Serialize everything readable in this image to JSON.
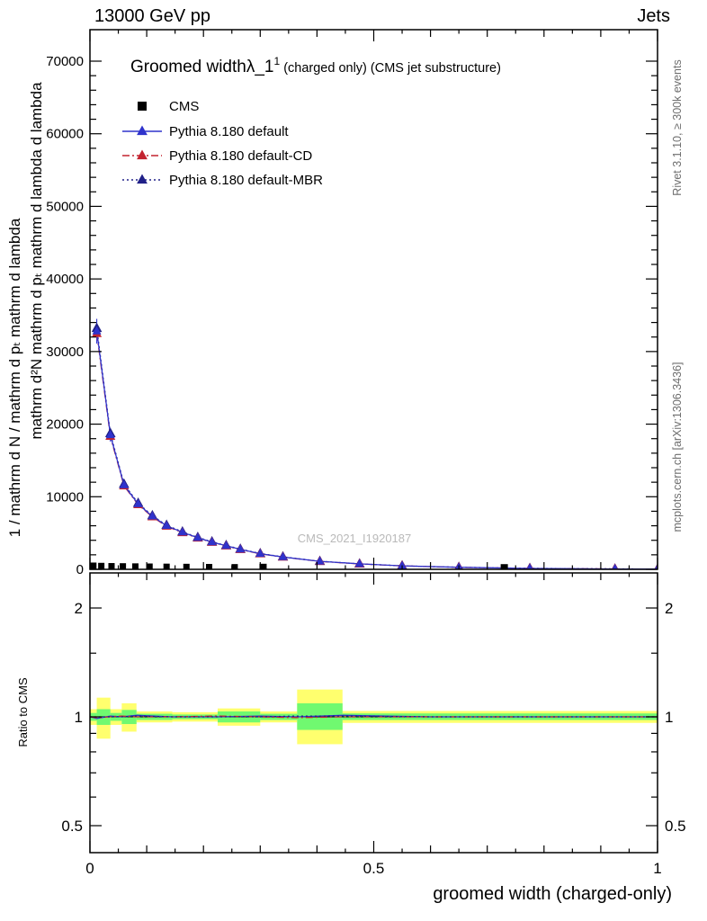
{
  "header": {
    "left": "13000 GeV pp",
    "right": "Jets"
  },
  "side_labels": {
    "rivet": "Rivet 3.1.10, ≥ 300k events",
    "mcplots": "mcplots.cern.ch [arXiv:1306.3436]",
    "watermark": "CMS_2021_I1920187"
  },
  "main_panel": {
    "title_main": "Groomed width",
    "title_symbol": "λ_1",
    "title_sup": "1",
    "title_suffix": " (charged only) (CMS jet substructure)",
    "ylabel_outer": "1 / mathrm d N / mathrm d pₜ mathrm d lambda",
    "ylabel_inner": "mathrm d²N mathrm d pₜ mathrm d lambda d lambda"
  },
  "legend": {
    "entries": [
      {
        "label": "CMS",
        "marker": "square",
        "color": "#000000",
        "dash": "solid"
      },
      {
        "label": "Pythia 8.180 default",
        "marker": "line-triangle",
        "color": "#2f33cc",
        "dash": "solid"
      },
      {
        "label": "Pythia 8.180 default-CD",
        "marker": "line-triangle",
        "color": "#c3232f",
        "dash": "dashdot"
      },
      {
        "label": "Pythia 8.180 default-MBR",
        "marker": "line-triangle",
        "color": "#202088",
        "dash": "dot"
      }
    ]
  },
  "ratio_panel": {
    "ylabel": "Ratio to CMS"
  },
  "xaxis": {
    "label": "groomed width (charged-only)"
  },
  "colors": {
    "blue": "#2f33cc",
    "red": "#c3232f",
    "navy": "#202088",
    "black": "#000000",
    "band_yellow": "#ffff6e",
    "band_green": "#70f970",
    "gray_text": "#6e6e6e",
    "watermark": "#b9b9b9"
  },
  "chart_data": {
    "main": {
      "type": "line",
      "xlim": [
        0,
        1
      ],
      "ylim": [
        0,
        74000
      ],
      "grid": false,
      "legend_position": "top-left",
      "yticks": [
        {
          "v": 0,
          "label": "0"
        },
        {
          "v": 10000,
          "label": "10000"
        },
        {
          "v": 20000,
          "label": "20000"
        },
        {
          "v": 30000,
          "label": "30000"
        },
        {
          "v": 40000,
          "label": "40000"
        },
        {
          "v": 50000,
          "label": "50000"
        },
        {
          "v": 60000,
          "label": "60000"
        },
        {
          "v": 70000,
          "label": "70000"
        }
      ],
      "ytick_minor_step": 2000,
      "xticks": [
        {
          "v": 0,
          "label": "0"
        },
        {
          "v": 0.5,
          "label": "0.5"
        },
        {
          "v": 1,
          "label": "1"
        }
      ],
      "x": [
        0.012,
        0.036,
        0.06,
        0.085,
        0.11,
        0.135,
        0.163,
        0.19,
        0.215,
        0.24,
        0.265,
        0.3,
        0.34,
        0.405,
        0.475,
        0.55,
        0.65,
        0.775,
        0.925,
        1.0
      ],
      "series": [
        {
          "name": "Pythia 8.180 default",
          "color": "#2f33cc",
          "dash": "solid",
          "values": [
            32800,
            18500,
            11600,
            9000,
            7300,
            6000,
            5100,
            4350,
            3750,
            3250,
            2750,
            2150,
            1700,
            1100,
            750,
            480,
            280,
            130,
            55,
            35
          ],
          "errors": [
            1700,
            900,
            520,
            420,
            360,
            300,
            260,
            230,
            200,
            185,
            170,
            150,
            130,
            105,
            85,
            65,
            45,
            30,
            20,
            15
          ]
        },
        {
          "name": "Pythia 8.180 default-CD",
          "color": "#c3232f",
          "dash": "dashdot",
          "values": [
            32470,
            18315,
            11484,
            8910,
            7227,
            5940,
            5049,
            4307,
            3713,
            3218,
            2723,
            2129,
            1683,
            1089,
            743,
            475,
            277,
            129,
            54,
            35
          ]
        },
        {
          "name": "Pythia 8.180 default-MBR",
          "color": "#202088",
          "dash": "dot",
          "values": [
            33194,
            18722,
            11739,
            9108,
            7388,
            6072,
            5161,
            4402,
            3795,
            3289,
            2783,
            2176,
            1720,
            1113,
            759,
            486,
            283,
            132,
            56,
            35
          ]
        }
      ],
      "cms_data": {
        "name": "CMS",
        "marker": "square",
        "color": "#000000",
        "x": [
          0.006,
          0.02,
          0.038,
          0.058,
          0.08,
          0.105,
          0.135,
          0.17,
          0.21,
          0.255,
          0.305,
          0.73
        ],
        "y": [
          500,
          460,
          430,
          410,
          390,
          370,
          350,
          330,
          310,
          290,
          270,
          220
        ],
        "size": [
          7,
          7,
          7,
          7,
          7,
          7,
          7,
          7,
          7,
          7,
          8,
          8
        ]
      }
    },
    "ratio": {
      "type": "ratio",
      "ylog": true,
      "ylim": [
        0.42,
        2.5
      ],
      "reference": 1,
      "yticks": [
        {
          "v": 0.5,
          "label": "0.5"
        },
        {
          "v": 1,
          "label": "1"
        },
        {
          "v": 2,
          "label": "2"
        }
      ],
      "yminors": [
        0.6,
        0.7,
        0.8,
        0.9,
        1.5
      ],
      "bands": [
        {
          "x0": 0.0,
          "x1": 0.012,
          "yellow": [
            0.95,
            1.05
          ],
          "green": [
            0.975,
            1.025
          ]
        },
        {
          "x0": 0.012,
          "x1": 0.036,
          "yellow": [
            0.87,
            1.13
          ],
          "green": [
            0.95,
            1.05
          ]
        },
        {
          "x0": 0.036,
          "x1": 0.056,
          "yellow": [
            0.95,
            1.05
          ],
          "green": [
            0.975,
            1.025
          ]
        },
        {
          "x0": 0.056,
          "x1": 0.082,
          "yellow": [
            0.91,
            1.09
          ],
          "green": [
            0.955,
            1.045
          ]
        },
        {
          "x0": 0.082,
          "x1": 0.145,
          "yellow": [
            0.965,
            1.035
          ],
          "green": [
            0.98,
            1.02
          ]
        },
        {
          "x0": 0.145,
          "x1": 0.225,
          "yellow": [
            0.97,
            1.03
          ],
          "green": [
            0.985,
            1.015
          ]
        },
        {
          "x0": 0.225,
          "x1": 0.3,
          "yellow": [
            0.945,
            1.055
          ],
          "green": [
            0.965,
            1.035
          ]
        },
        {
          "x0": 0.3,
          "x1": 0.365,
          "yellow": [
            0.965,
            1.035
          ],
          "green": [
            0.98,
            1.02
          ]
        },
        {
          "x0": 0.365,
          "x1": 0.445,
          "yellow": [
            0.84,
            1.19
          ],
          "green": [
            0.92,
            1.09
          ]
        },
        {
          "x0": 0.445,
          "x1": 1.0,
          "yellow": [
            0.962,
            1.038
          ],
          "green": [
            0.98,
            1.022
          ]
        }
      ],
      "x": [
        0,
        0.012,
        0.036,
        0.056,
        0.082,
        0.145,
        0.225,
        0.3,
        0.365,
        0.445,
        0.6,
        0.8,
        1.0
      ],
      "series": [
        {
          "name": "Pythia 8.180 default",
          "color": "#2f33cc",
          "dash": "solid",
          "values": [
            1.0,
            0.99,
            1.005,
            1.0,
            1.01,
            1.0,
            1.0,
            1.005,
            1.0,
            1.01,
            1.0,
            1.0,
            1.0
          ]
        },
        {
          "name": "Pythia 8.180 default-CD",
          "color": "#c3232f",
          "dash": "dashdot",
          "values": [
            1.0,
            0.995,
            1.0,
            1.005,
            1.0,
            1.0,
            1.005,
            1.0,
            0.995,
            1.0,
            1.0,
            1.0,
            1.0
          ]
        },
        {
          "name": "Pythia 8.180 default-MBR",
          "color": "#202088",
          "dash": "dot",
          "values": [
            1.0,
            1.0,
            1.0,
            1.0,
            1.005,
            1.0,
            1.0,
            1.0,
            1.005,
            1.005,
            1.0,
            1.0,
            1.0
          ]
        }
      ]
    }
  }
}
